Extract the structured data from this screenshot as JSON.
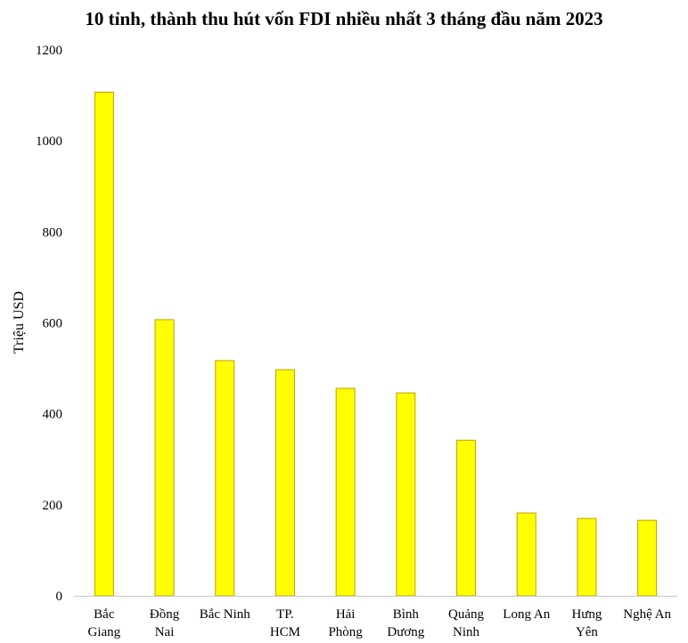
{
  "chart_data": {
    "type": "bar",
    "title": "10 tỉnh, thành thu hút vốn FDI nhiều nhất 3 tháng đầu năm 2023",
    "xlabel": "",
    "ylabel": "Triệu USD",
    "ylim": [
      0,
      1200
    ],
    "yticks": [
      0,
      200,
      400,
      600,
      800,
      1000,
      1200
    ],
    "categories": [
      [
        "Bắc",
        "Giang"
      ],
      [
        "Đồng",
        "Nai"
      ],
      [
        "Bắc Ninh"
      ],
      [
        "TP.",
        "HCM"
      ],
      [
        "Hải",
        "Phòng"
      ],
      [
        "Bình",
        "Dương"
      ],
      [
        "Quảng",
        "Ninh"
      ],
      [
        "Long An"
      ],
      [
        "Hưng",
        "Yên"
      ],
      [
        "Nghệ An"
      ]
    ],
    "values": [
      1107,
      607,
      517,
      497,
      456,
      446,
      342,
      182,
      170,
      166
    ],
    "grid": false,
    "legend": "none",
    "bar_color": "#FFFF00",
    "bar_edge_color": "#BFA000"
  }
}
